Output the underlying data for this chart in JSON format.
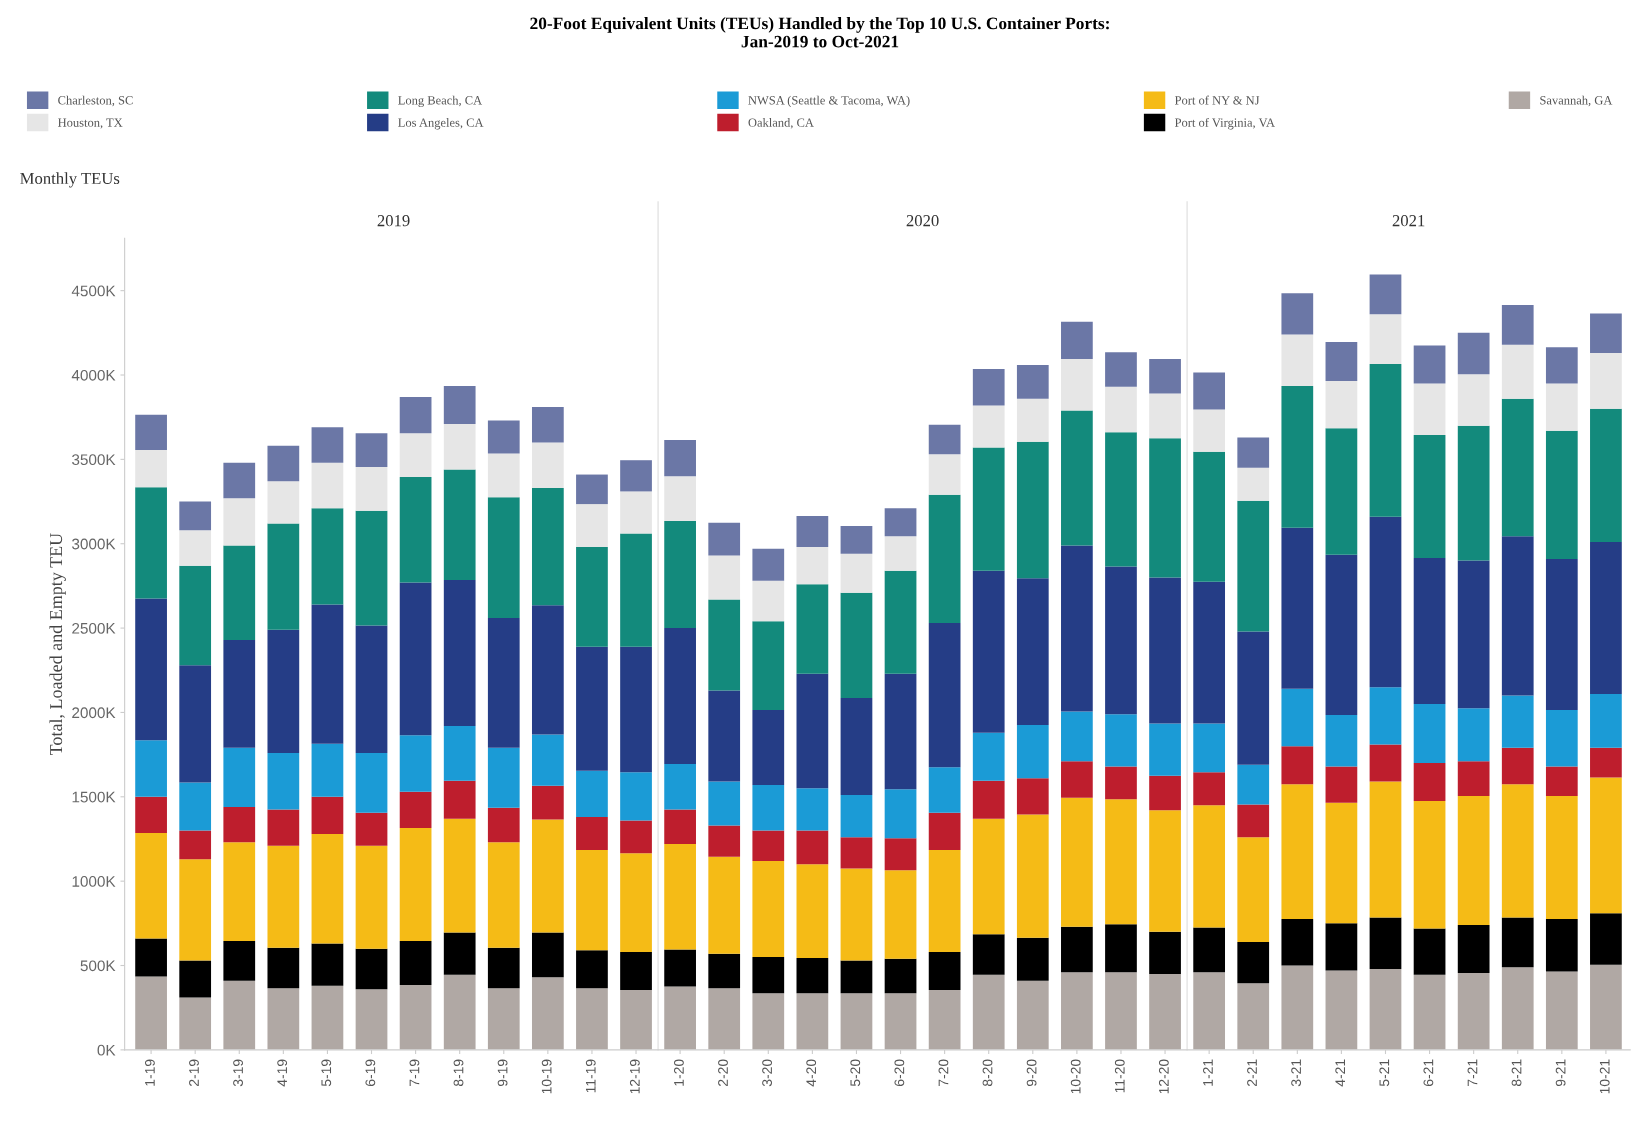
{
  "chart_data": {
    "type": "bar",
    "stacked": true,
    "title": "20-Foot Equivalent Units (TEUs) Handled by the Top 10 U.S. Container Ports:\nJan-2019 to Oct-2021",
    "ylabel": "Total, Loaded and Empty TEU",
    "annotations": [
      "Monthly TEUs",
      "2019",
      "2020",
      "2021"
    ],
    "categories": [
      "1-19",
      "2-19",
      "3-19",
      "4-19",
      "5-19",
      "6-19",
      "7-19",
      "8-19",
      "9-19",
      "10-19",
      "11-19",
      "12-19",
      "1-20",
      "2-20",
      "3-20",
      "4-20",
      "5-20",
      "6-20",
      "7-20",
      "8-20",
      "9-20",
      "10-20",
      "11-20",
      "12-20",
      "1-21",
      "2-21",
      "3-21",
      "4-21",
      "5-21",
      "6-21",
      "7-21",
      "8-21",
      "9-21",
      "10-21"
    ],
    "series": [
      {
        "name": "Savannah, GA",
        "color": "#b0a8a4",
        "values": [
          435,
          310,
          410,
          365,
          380,
          360,
          385,
          445,
          365,
          430,
          365,
          355,
          375,
          365,
          335,
          335,
          335,
          335,
          355,
          445,
          410,
          460,
          460,
          450,
          460,
          395,
          500,
          470,
          480,
          445,
          455,
          490,
          465,
          505
        ]
      },
      {
        "name": "Port of Virginia, VA",
        "color": "#000000",
        "values": [
          225,
          220,
          235,
          240,
          250,
          240,
          260,
          250,
          240,
          265,
          225,
          225,
          220,
          205,
          215,
          210,
          195,
          205,
          225,
          240,
          255,
          270,
          285,
          250,
          265,
          245,
          275,
          280,
          305,
          275,
          285,
          295,
          310,
          305
        ]
      },
      {
        "name": "Port of NY & NJ",
        "color": "#f5bb16",
        "values": [
          625,
          600,
          585,
          605,
          650,
          610,
          670,
          675,
          625,
          670,
          595,
          585,
          625,
          575,
          570,
          555,
          545,
          525,
          605,
          685,
          730,
          765,
          740,
          720,
          725,
          620,
          800,
          715,
          805,
          755,
          765,
          790,
          730,
          805
        ]
      },
      {
        "name": "Oakland, CA",
        "color": "#be1e2d",
        "values": [
          215,
          170,
          210,
          215,
          220,
          195,
          215,
          225,
          205,
          200,
          195,
          195,
          205,
          185,
          180,
          200,
          185,
          190,
          220,
          225,
          215,
          215,
          195,
          205,
          195,
          195,
          225,
          215,
          220,
          225,
          205,
          215,
          175,
          175
        ]
      },
      {
        "name": "NWSA (Seattle & Tacoma, WA)",
        "color": "#1b9bd6",
        "values": [
          335,
          285,
          350,
          335,
          315,
          355,
          335,
          325,
          355,
          305,
          275,
          285,
          270,
          260,
          270,
          250,
          250,
          290,
          270,
          285,
          315,
          295,
          310,
          310,
          290,
          235,
          340,
          305,
          340,
          350,
          315,
          310,
          335,
          320
        ]
      },
      {
        "name": "Los Angeles, CA",
        "color": "#253d86",
        "values": [
          840,
          695,
          640,
          730,
          825,
          755,
          905,
          865,
          770,
          765,
          735,
          745,
          805,
          540,
          445,
          680,
          575,
          685,
          855,
          960,
          870,
          985,
          875,
          865,
          840,
          790,
          955,
          950,
          1010,
          865,
          875,
          945,
          895,
          900
        ]
      },
      {
        "name": "Long Beach, CA",
        "color": "#138a7c",
        "values": [
          660,
          590,
          560,
          630,
          570,
          680,
          625,
          655,
          715,
          695,
          590,
          670,
          635,
          540,
          525,
          530,
          625,
          610,
          760,
          730,
          810,
          800,
          795,
          825,
          770,
          775,
          840,
          750,
          905,
          730,
          800,
          815,
          760,
          790
        ]
      },
      {
        "name": "Houston, TX",
        "color": "#e6e6e6",
        "values": [
          220,
          210,
          280,
          250,
          270,
          260,
          260,
          270,
          260,
          270,
          255,
          250,
          265,
          260,
          240,
          220,
          230,
          205,
          240,
          250,
          255,
          305,
          270,
          265,
          250,
          195,
          305,
          280,
          295,
          305,
          305,
          320,
          280,
          330
        ]
      },
      {
        "name": "Charleston, SC",
        "color": "#6b77a6",
        "values": [
          210,
          170,
          210,
          210,
          210,
          200,
          215,
          225,
          195,
          210,
          175,
          185,
          215,
          195,
          190,
          185,
          165,
          165,
          175,
          215,
          200,
          220,
          205,
          205,
          220,
          180,
          245,
          230,
          235,
          225,
          245,
          235,
          215,
          235
        ]
      }
    ],
    "ylim": [
      0,
      4810
    ],
    "yticks": [
      {
        "value": 0,
        "label": "0K"
      },
      {
        "value": 500,
        "label": "500K"
      },
      {
        "value": 1000,
        "label": "1000K"
      },
      {
        "value": 1500,
        "label": "1500K"
      },
      {
        "value": 2000,
        "label": "2000K"
      },
      {
        "value": 2500,
        "label": "2500K"
      },
      {
        "value": 3000,
        "label": "3000K"
      },
      {
        "value": 3500,
        "label": "3500K"
      },
      {
        "value": 4000,
        "label": "4000K"
      },
      {
        "value": 4500,
        "label": "4500K"
      }
    ],
    "grid": false,
    "legend": "top"
  }
}
